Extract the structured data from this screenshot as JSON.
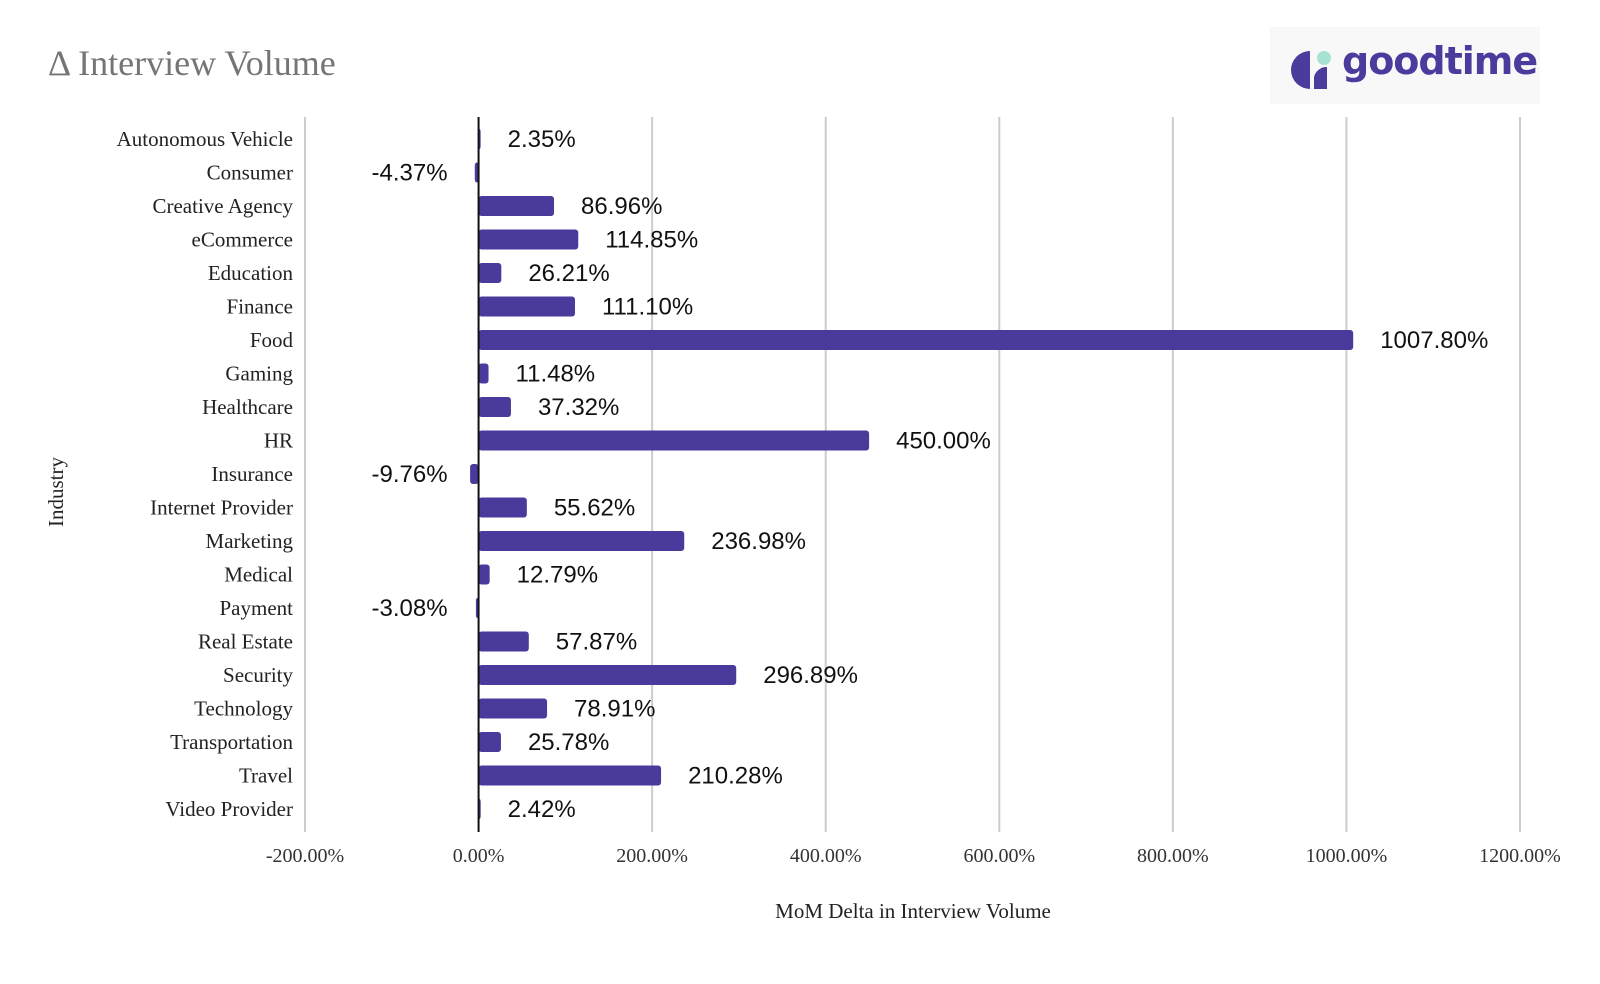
{
  "chart_data": {
    "type": "bar",
    "orientation": "horizontal",
    "title": "Δ Interview Volume",
    "xlabel": "MoM Delta in Interview Volume",
    "ylabel": "Industry",
    "xlim": [
      -200,
      1200
    ],
    "xticks": [
      -200,
      0,
      200,
      400,
      600,
      800,
      1000,
      1200
    ],
    "xtick_labels": [
      "-200.00%",
      "0.00%",
      "200.00%",
      "400.00%",
      "600.00%",
      "800.00%",
      "1000.00%",
      "1200.00%"
    ],
    "grid": true,
    "bar_color": "#4a3a9c",
    "categories": [
      "Autonomous Vehicle",
      "Consumer",
      "Creative Agency",
      "eCommerce",
      "Education",
      "Finance",
      "Food",
      "Gaming",
      "Healthcare",
      "HR",
      "Insurance",
      "Internet Provider",
      "Marketing",
      "Medical",
      "Payment",
      "Real Estate",
      "Security",
      "Technology",
      "Transportation",
      "Travel",
      "Video Provider"
    ],
    "values": [
      2.35,
      -4.37,
      86.96,
      114.85,
      26.21,
      111.1,
      1007.8,
      11.48,
      37.32,
      450.0,
      -9.76,
      55.62,
      236.98,
      12.79,
      -3.08,
      57.87,
      296.89,
      78.91,
      25.78,
      210.28,
      2.42
    ],
    "data_labels": [
      "2.35%",
      "-4.37%",
      "86.96%",
      "114.85%",
      "26.21%",
      "111.10%",
      "1007.80%",
      "11.48%",
      "37.32%",
      "450.00%",
      "-9.76%",
      "55.62%",
      "236.98%",
      "12.79%",
      "-3.08%",
      "57.87%",
      "296.89%",
      "78.91%",
      "25.78%",
      "210.28%",
      "2.42%"
    ]
  },
  "logo": {
    "text": "goodtime",
    "colors": {
      "primary": "#4a3b9c",
      "accent": "#a6e3d3"
    }
  }
}
